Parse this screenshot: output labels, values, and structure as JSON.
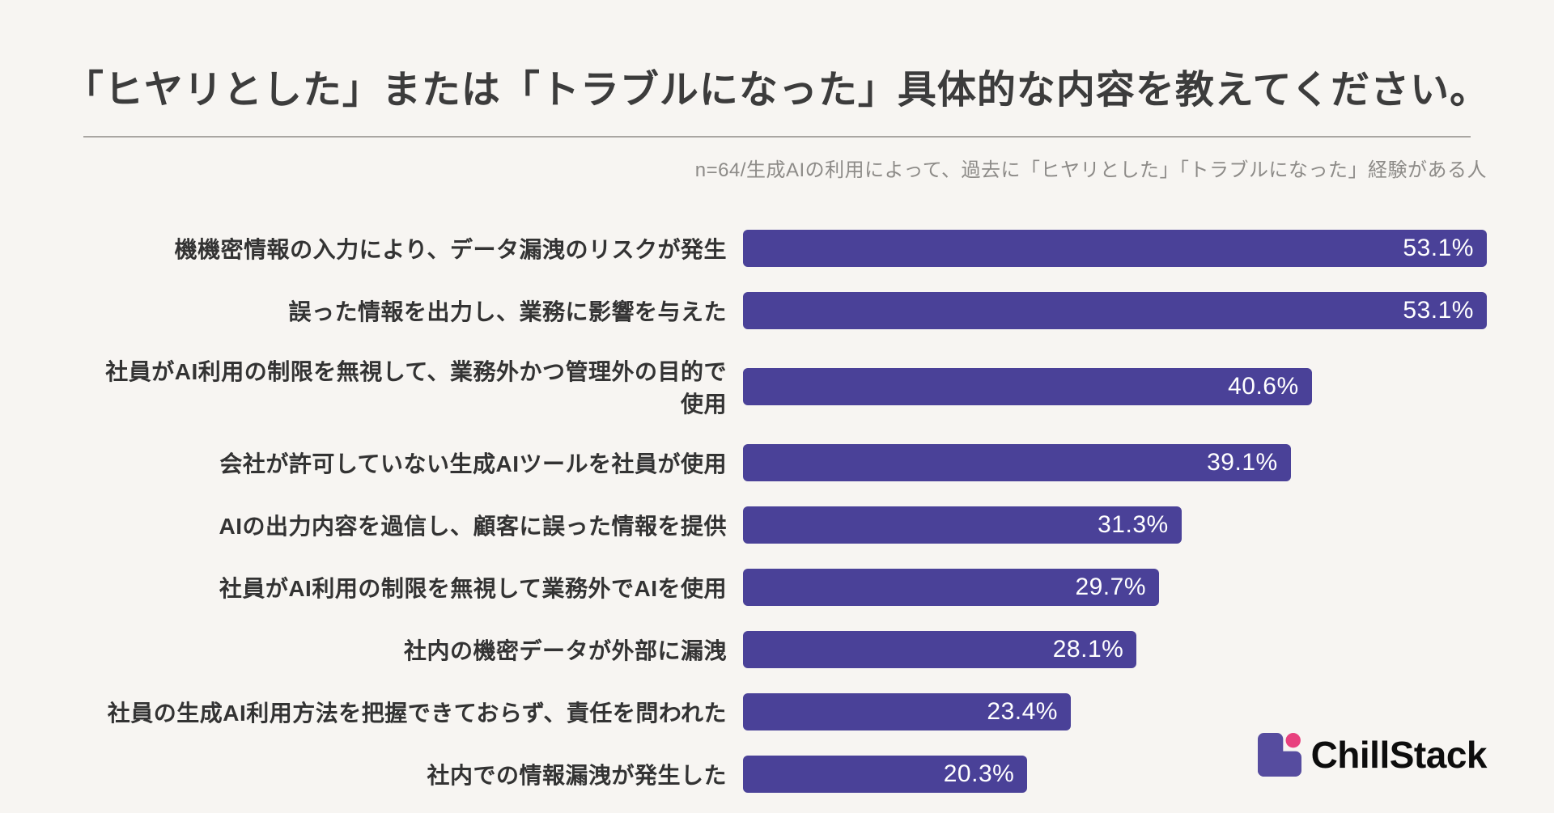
{
  "page": {
    "background": "#f7f5f2"
  },
  "header": {
    "title": "「ヒヤリとした」または「トラブルになった」具体的な内容を教えてください。",
    "subtitle": "n=64/生成AIの利用によって、過去に「ヒヤリとした」「トラブルになった」経験がある人"
  },
  "chart_data": {
    "type": "bar",
    "orientation": "horizontal",
    "categories": [
      "機機密情報の入力により、データ漏洩のリスクが発生",
      "誤った情報を出力し、業務に影響を与えた",
      "社員がAI利用の制限を無視して、業務外かつ管理外の目的で使用",
      "会社が許可していない生成AIツールを社員が使用",
      "AIの出力内容を過信し、顧客に誤った情報を提供",
      "社員がAI利用の制限を無視して業務外でAIを使用",
      "社内の機密データが外部に漏洩",
      "社員の生成AI利用方法を把握できておらず、責任を問われた",
      "社内での情報漏洩が発生した"
    ],
    "values": [
      53.1,
      53.1,
      40.6,
      39.1,
      31.3,
      29.7,
      28.1,
      23.4,
      20.3
    ],
    "value_labels": [
      "53.1%",
      "53.1%",
      "40.6%",
      "39.1%",
      "31.3%",
      "29.7%",
      "28.1%",
      "23.4%",
      "20.3%"
    ],
    "xlim": [
      0,
      53.1
    ],
    "bar_color": "#4a4198",
    "value_label_color": "#ffffff",
    "grid": false,
    "legend": false
  },
  "footer": {
    "logo_text": "ChillStack",
    "logo_purple": "#564c9f",
    "logo_pink": "#e8417e"
  }
}
